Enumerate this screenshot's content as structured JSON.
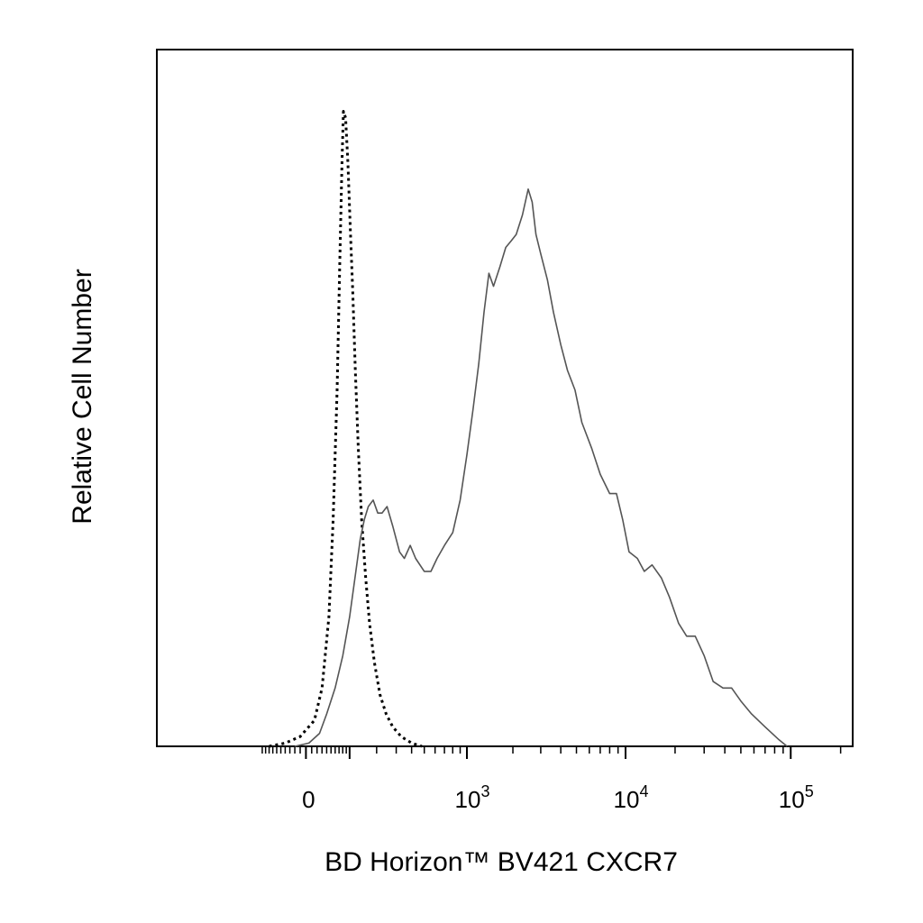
{
  "chart_data": {
    "type": "line",
    "title": "",
    "xlabel": "BD Horizon™ BV421 CXCR7",
    "ylabel": "Relative Cell Number",
    "x_scale": "biexponential",
    "x_tick_labels": [
      {
        "base": "0",
        "exp": "",
        "value": 0
      },
      {
        "base": "10",
        "exp": "3",
        "value": 1000
      },
      {
        "base": "10",
        "exp": "4",
        "value": 10000
      },
      {
        "base": "10",
        "exp": "5",
        "value": 100000
      }
    ],
    "xlim": [
      -150,
      200000
    ],
    "ylim": [
      0,
      100
    ],
    "grid": false,
    "legend": "none",
    "series": [
      {
        "style": "dotted",
        "color": "#000000",
        "points": [
          [
            -80,
            0
          ],
          [
            -40,
            0.5
          ],
          [
            -10,
            1.5
          ],
          [
            15,
            4
          ],
          [
            30,
            9
          ],
          [
            45,
            20
          ],
          [
            55,
            35
          ],
          [
            65,
            55
          ],
          [
            72,
            75
          ],
          [
            78,
            90
          ],
          [
            82,
            98
          ],
          [
            88,
            97
          ],
          [
            95,
            90
          ],
          [
            102,
            80
          ],
          [
            110,
            70
          ],
          [
            118,
            58
          ],
          [
            128,
            46
          ],
          [
            140,
            35
          ],
          [
            155,
            26
          ],
          [
            170,
            19
          ],
          [
            190,
            13
          ],
          [
            215,
            8
          ],
          [
            245,
            5
          ],
          [
            280,
            3
          ],
          [
            330,
            1.5
          ],
          [
            400,
            0.5
          ],
          [
            480,
            0
          ]
        ]
      },
      {
        "style": "solid",
        "color": "#555555",
        "points": [
          [
            -20,
            0
          ],
          [
            5,
            0.5
          ],
          [
            25,
            2
          ],
          [
            40,
            5
          ],
          [
            60,
            9
          ],
          [
            80,
            14
          ],
          [
            100,
            20
          ],
          [
            120,
            27
          ],
          [
            135,
            32
          ],
          [
            150,
            35
          ],
          [
            165,
            37
          ],
          [
            185,
            38
          ],
          [
            205,
            36
          ],
          [
            225,
            36
          ],
          [
            250,
            37
          ],
          [
            280,
            34
          ],
          [
            320,
            30
          ],
          [
            350,
            29
          ],
          [
            390,
            31
          ],
          [
            430,
            29
          ],
          [
            500,
            27
          ],
          [
            560,
            27
          ],
          [
            620,
            29
          ],
          [
            700,
            31
          ],
          [
            800,
            33
          ],
          [
            900,
            38
          ],
          [
            1000,
            45
          ],
          [
            1100,
            52
          ],
          [
            1200,
            59
          ],
          [
            1300,
            67
          ],
          [
            1400,
            73
          ],
          [
            1500,
            71
          ],
          [
            1650,
            74
          ],
          [
            1800,
            77
          ],
          [
            1950,
            78
          ],
          [
            2100,
            79
          ],
          [
            2300,
            82
          ],
          [
            2500,
            86
          ],
          [
            2650,
            84
          ],
          [
            2800,
            79
          ],
          [
            3000,
            76
          ],
          [
            3300,
            72
          ],
          [
            3600,
            67
          ],
          [
            4000,
            62
          ],
          [
            4400,
            58
          ],
          [
            4900,
            55
          ],
          [
            5400,
            50
          ],
          [
            6200,
            46
          ],
          [
            7000,
            42
          ],
          [
            8000,
            39
          ],
          [
            8800,
            39
          ],
          [
            9600,
            35
          ],
          [
            10500,
            30
          ],
          [
            11800,
            29
          ],
          [
            13000,
            27
          ],
          [
            14500,
            28
          ],
          [
            16500,
            26
          ],
          [
            18500,
            23
          ],
          [
            21000,
            19
          ],
          [
            23500,
            17
          ],
          [
            26500,
            17
          ],
          [
            30000,
            14
          ],
          [
            34000,
            10
          ],
          [
            39000,
            9
          ],
          [
            44000,
            9
          ],
          [
            50000,
            7
          ],
          [
            58000,
            5
          ],
          [
            70000,
            3
          ],
          [
            85000,
            1
          ],
          [
            95000,
            0
          ]
        ]
      }
    ]
  }
}
